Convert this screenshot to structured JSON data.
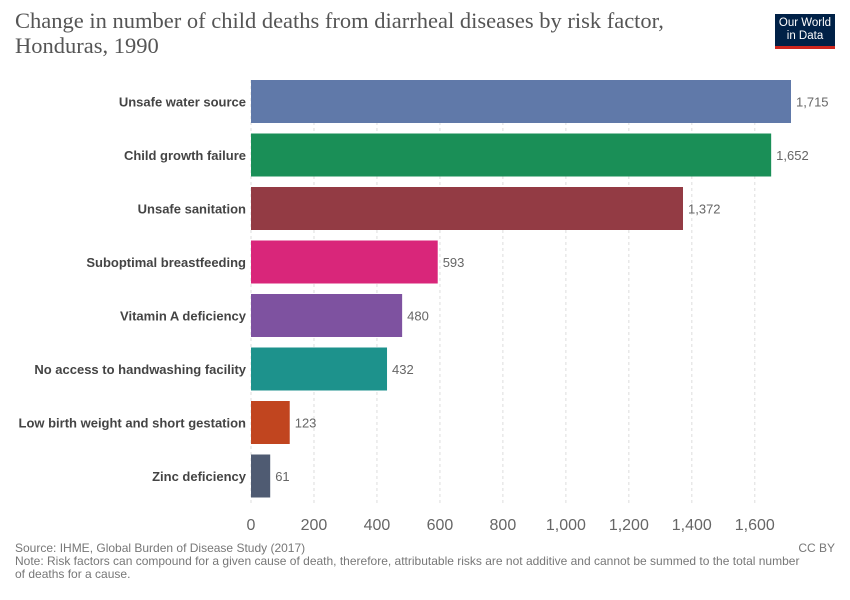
{
  "header": {
    "title": "Change in number of child deaths from diarrheal diseases by risk factor, Honduras, 1990",
    "logo_line1": "Our World",
    "logo_line2": "in Data"
  },
  "footer": {
    "source": "Source: IHME, Global Burden of Disease Study (2017)",
    "note": "Note: Risk factors can compound for a given cause of death, therefore, attributable risks are not additive and cannot be summed to the total number of deaths for a cause.",
    "license": "CC BY"
  },
  "colors": {
    "bars": [
      "#6079a9",
      "#1a8f57",
      "#933b44",
      "#d9267a",
      "#7e52a0",
      "#1d928c",
      "#c1451f",
      "#4f5b72"
    ],
    "axis_text": "#666666",
    "label_text": "#444444",
    "grid": "#dddddd"
  },
  "chart_data": {
    "type": "bar",
    "orientation": "horizontal",
    "categories": [
      "Unsafe water source",
      "Child growth failure",
      "Unsafe sanitation",
      "Suboptimal breastfeeding",
      "Vitamin A deficiency",
      "No access to handwashing facility",
      "Low birth weight and short gestation",
      "Zinc deficiency"
    ],
    "values": [
      1715,
      1652,
      1372,
      593,
      480,
      432,
      123,
      61
    ],
    "value_labels": [
      "1,715",
      "1,652",
      "1,372",
      "593",
      "480",
      "432",
      "123",
      "61"
    ],
    "xticks": [
      0,
      200,
      400,
      600,
      800,
      1000,
      1200,
      1400,
      1600
    ],
    "xtick_labels": [
      "0",
      "200",
      "400",
      "600",
      "800",
      "1,000",
      "1,200",
      "1,400",
      "1,600"
    ],
    "xlim": [
      0,
      1715
    ],
    "grid": "vertical dashed"
  }
}
